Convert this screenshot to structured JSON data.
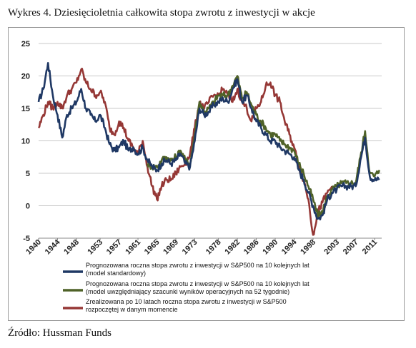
{
  "caption": "Wykres 4. Dziesięcioletnia całkowita stopa zwrotu z inwestycji w akcje",
  "source": "Źródło: Hussman Funds",
  "chart_data": {
    "type": "line",
    "title": "",
    "xlabel": "",
    "ylabel": "",
    "xlim": [
      1940,
      2012.5
    ],
    "ylim": [
      -5,
      25
    ],
    "x_ticks": [
      "1940",
      "1944",
      "1948",
      "1953",
      "1957",
      "1961",
      "1965",
      "1969",
      "1973",
      "1978",
      "1982",
      "1986",
      "1990",
      "1994",
      "1998",
      "2003",
      "2007",
      "2011"
    ],
    "y_ticks": [
      "25",
      "20",
      "15",
      "10",
      "5",
      "0",
      "-5"
    ],
    "grid": "horizontal",
    "legend_position": "bottom",
    "series": [
      {
        "name": "Prognozowana roczna stopa zwrotu z inwestycji w S&P500 na 10 kolejnych lat (model standardowy)",
        "legend_lines": [
          "Prognozowana roczna stopa zwrotu z inwestycji w S&P500 na 10 kolejnych lat",
          "(model standardowy)"
        ],
        "color": "#1f3864",
        "points": [
          [
            1940,
            16
          ],
          [
            1941,
            18
          ],
          [
            1942,
            22
          ],
          [
            1943,
            17
          ],
          [
            1944,
            14
          ],
          [
            1945,
            10.5
          ],
          [
            1946,
            14
          ],
          [
            1947,
            15
          ],
          [
            1948,
            16
          ],
          [
            1949,
            18
          ],
          [
            1950,
            15
          ],
          [
            1951,
            14
          ],
          [
            1952,
            13
          ],
          [
            1953,
            14
          ],
          [
            1954,
            12
          ],
          [
            1955,
            9.5
          ],
          [
            1956,
            8.5
          ],
          [
            1957,
            9
          ],
          [
            1958,
            10
          ],
          [
            1959,
            8.5
          ],
          [
            1960,
            9
          ],
          [
            1961,
            8
          ],
          [
            1962,
            9
          ],
          [
            1963,
            7
          ],
          [
            1964,
            6
          ],
          [
            1965,
            5.5
          ],
          [
            1966,
            6.5
          ],
          [
            1967,
            7
          ],
          [
            1968,
            6.5
          ],
          [
            1969,
            7
          ],
          [
            1970,
            8
          ],
          [
            1971,
            6.5
          ],
          [
            1972,
            6
          ],
          [
            1973,
            10
          ],
          [
            1974,
            15
          ],
          [
            1975,
            14
          ],
          [
            1976,
            14.5
          ],
          [
            1977,
            15.5
          ],
          [
            1978,
            16
          ],
          [
            1979,
            16.5
          ],
          [
            1980,
            16
          ],
          [
            1981,
            18
          ],
          [
            1982,
            19.5
          ],
          [
            1983,
            16
          ],
          [
            1984,
            17
          ],
          [
            1985,
            15
          ],
          [
            1986,
            13
          ],
          [
            1987,
            12
          ],
          [
            1988,
            11
          ],
          [
            1989,
            10
          ],
          [
            1990,
            10
          ],
          [
            1991,
            9
          ],
          [
            1992,
            8.5
          ],
          [
            1993,
            8
          ],
          [
            1994,
            7.5
          ],
          [
            1995,
            5.5
          ],
          [
            1996,
            4
          ],
          [
            1997,
            2
          ],
          [
            1998,
            0
          ],
          [
            1999,
            -2
          ],
          [
            2000,
            -1.5
          ],
          [
            2001,
            1
          ],
          [
            2002,
            2
          ],
          [
            2003,
            2.5
          ],
          [
            2004,
            3
          ],
          [
            2005,
            3
          ],
          [
            2006,
            3
          ],
          [
            2007,
            3
          ],
          [
            2008,
            7
          ],
          [
            2009,
            10.5
          ],
          [
            2010,
            4.5
          ],
          [
            2011,
            4
          ],
          [
            2012,
            4
          ]
        ]
      },
      {
        "name": "Prognozowana roczna stopa zwrotu z inwestycji w S&P500 na 10 kolejnych lat (model uwzględniający szacunki wyników operacyjnych na 52 tygodnie)",
        "legend_lines": [
          "Prognozowana roczna stopa zwrotu z inwestycji w S&P500 na 10 kolejnych lat",
          "(model uwzględniający szacunki wyników operacyjnych na 52 tygodnie)"
        ],
        "color": "#4f6228",
        "points": [
          [
            1963,
            6.5
          ],
          [
            1964,
            6
          ],
          [
            1965,
            6
          ],
          [
            1966,
            7
          ],
          [
            1967,
            7.5
          ],
          [
            1968,
            7
          ],
          [
            1969,
            7.5
          ],
          [
            1970,
            8.5
          ],
          [
            1971,
            7
          ],
          [
            1972,
            6.5
          ],
          [
            1973,
            11
          ],
          [
            1974,
            16
          ],
          [
            1975,
            14.5
          ],
          [
            1976,
            15
          ],
          [
            1977,
            16
          ],
          [
            1978,
            17
          ],
          [
            1979,
            17
          ],
          [
            1980,
            17
          ],
          [
            1981,
            18.5
          ],
          [
            1982,
            20
          ],
          [
            1983,
            16.5
          ],
          [
            1984,
            17.5
          ],
          [
            1985,
            15.5
          ],
          [
            1986,
            14
          ],
          [
            1987,
            13
          ],
          [
            1988,
            12
          ],
          [
            1989,
            11
          ],
          [
            1990,
            11
          ],
          [
            1991,
            10
          ],
          [
            1992,
            9.5
          ],
          [
            1993,
            9
          ],
          [
            1994,
            8.5
          ],
          [
            1995,
            6.5
          ],
          [
            1996,
            5
          ],
          [
            1997,
            3
          ],
          [
            1998,
            1
          ],
          [
            1999,
            -1.5
          ],
          [
            2000,
            -1
          ],
          [
            2001,
            1.5
          ],
          [
            2002,
            2.5
          ],
          [
            2003,
            3
          ],
          [
            2004,
            3.5
          ],
          [
            2005,
            3.5
          ],
          [
            2006,
            3.5
          ],
          [
            2007,
            3.5
          ],
          [
            2008,
            7.5
          ],
          [
            2009,
            11.5
          ],
          [
            2010,
            5
          ],
          [
            2011,
            4.5
          ],
          [
            2012,
            5.5
          ]
        ]
      },
      {
        "name": "Zrealizowana po 10 latach roczna stopa zwrotu z inwestycji w S&P500 rozpoczętej w danym momencie",
        "legend_lines": [
          "Zrealizowana po 10 latach roczna stopa zwrotu z inwestycji w S&P500",
          "rozpoczętej w danym momencie"
        ],
        "color": "#953735",
        "points": [
          [
            1940,
            12
          ],
          [
            1941,
            14
          ],
          [
            1942,
            16
          ],
          [
            1943,
            15
          ],
          [
            1944,
            16
          ],
          [
            1945,
            15
          ],
          [
            1946,
            17
          ],
          [
            1947,
            18
          ],
          [
            1948,
            19
          ],
          [
            1949,
            21
          ],
          [
            1950,
            19
          ],
          [
            1951,
            18
          ],
          [
            1952,
            17
          ],
          [
            1953,
            17.5
          ],
          [
            1954,
            16
          ],
          [
            1955,
            12
          ],
          [
            1956,
            11
          ],
          [
            1957,
            13
          ],
          [
            1958,
            12
          ],
          [
            1959,
            10
          ],
          [
            1960,
            9
          ],
          [
            1961,
            8
          ],
          [
            1962,
            10
          ],
          [
            1963,
            6
          ],
          [
            1964,
            3
          ],
          [
            1965,
            1
          ],
          [
            1966,
            3
          ],
          [
            1967,
            4
          ],
          [
            1968,
            4
          ],
          [
            1969,
            5
          ],
          [
            1970,
            6
          ],
          [
            1971,
            6.5
          ],
          [
            1972,
            8
          ],
          [
            1973,
            12
          ],
          [
            1974,
            16
          ],
          [
            1975,
            15
          ],
          [
            1976,
            16
          ],
          [
            1977,
            17
          ],
          [
            1978,
            17
          ],
          [
            1979,
            18
          ],
          [
            1980,
            17
          ],
          [
            1981,
            16
          ],
          [
            1982,
            18
          ],
          [
            1983,
            16
          ],
          [
            1984,
            15
          ],
          [
            1985,
            13
          ],
          [
            1986,
            15
          ],
          [
            1987,
            16
          ],
          [
            1988,
            18.5
          ],
          [
            1989,
            19
          ],
          [
            1990,
            17
          ],
          [
            1991,
            16
          ],
          [
            1992,
            13
          ],
          [
            1993,
            11
          ],
          [
            1994,
            9
          ],
          [
            1995,
            6
          ],
          [
            1996,
            4
          ],
          [
            1997,
            1
          ],
          [
            1998,
            -4.5
          ],
          [
            1999,
            -1
          ],
          [
            2000,
            0.5
          ],
          [
            2001,
            2
          ],
          [
            2002,
            3
          ]
        ]
      }
    ]
  }
}
